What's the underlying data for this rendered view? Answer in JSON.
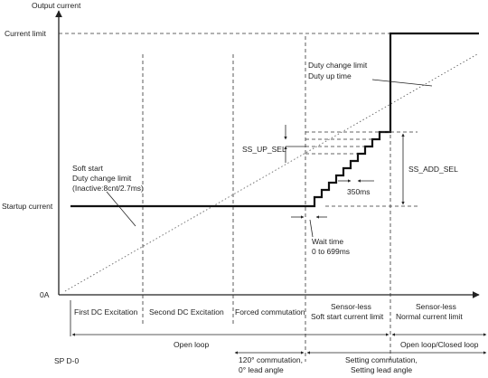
{
  "axes": {
    "y_title": "Output current",
    "y_labels": {
      "current_limit": "Current limit",
      "startup_current": "Startup current",
      "zero": "0A"
    }
  },
  "annotations": {
    "duty_change_limit": "Duty change limit",
    "duty_up_time": "Duty up time",
    "soft_start": "Soft start",
    "soft_start_duty": "Duty change limit",
    "soft_start_inactive": "(Inactive:8cnt/2.7ms)",
    "ss_up_sel": "SS_UP_SEL",
    "ss_add_sel": "SS_ADD_SEL",
    "step_time": "350ms",
    "wait_time": "Wait time",
    "wait_range": "0 to 699ms"
  },
  "phases": [
    {
      "line1": "First DC Excitation",
      "line2": ""
    },
    {
      "line1": "Second DC Excitation",
      "line2": ""
    },
    {
      "line1": "Forced commutation",
      "line2": ""
    },
    {
      "line1": "Sensor-less",
      "line2": "Soft start current limit"
    },
    {
      "line1": "Sensor-less",
      "line2": "Normal current limit"
    }
  ],
  "start_label": "SP D-0",
  "loop_labels": {
    "open_loop": "Open loop",
    "open_closed_loop": "Open loop/Closed loop"
  },
  "commutation_labels": {
    "left_1": "120° commutation,",
    "left_2": "0° lead angle",
    "right_1": "Setting commutation,",
    "right_2": "Setting lead angle"
  }
}
